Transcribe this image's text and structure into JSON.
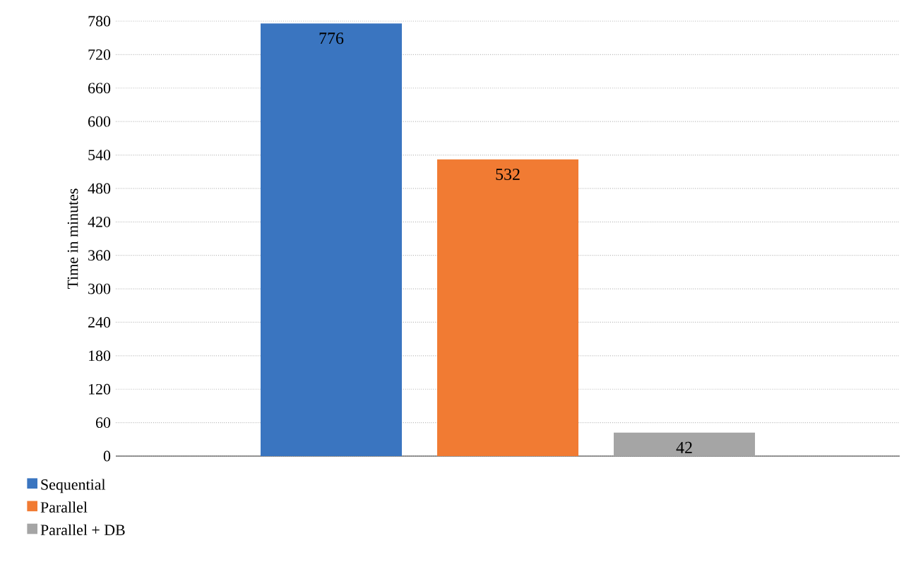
{
  "chart_data": {
    "type": "bar",
    "ylabel": "Time in minutes",
    "categories": [
      null
    ],
    "series": [
      {
        "name": "Sequential",
        "color": "#3a75c0",
        "values": [
          776
        ]
      },
      {
        "name": "Parallel",
        "color": "#f17b33",
        "values": [
          532
        ]
      },
      {
        "name": "Parallel + DB",
        "color": "#a5a5a5",
        "values": [
          42
        ]
      }
    ],
    "ylim": [
      0,
      780
    ],
    "yticks": [
      0,
      60,
      120,
      180,
      240,
      300,
      360,
      420,
      480,
      540,
      600,
      660,
      720,
      780
    ],
    "grid": "y",
    "legend": "bottom left",
    "data_labels": true
  }
}
